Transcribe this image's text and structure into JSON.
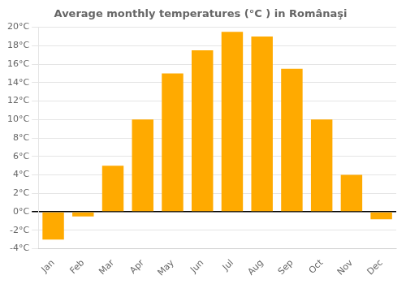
{
  "chart_data": {
    "type": "bar",
    "title": "Average monthly temperatures (°C ) in Românaşi",
    "categories": [
      "Jan",
      "Feb",
      "Mar",
      "Apr",
      "May",
      "Jun",
      "Jul",
      "Aug",
      "Sep",
      "Oct",
      "Nov",
      "Dec"
    ],
    "values": [
      -3.0,
      -0.5,
      5.0,
      10.0,
      15.0,
      17.5,
      19.5,
      19.0,
      15.5,
      10.0,
      4.0,
      -0.8
    ],
    "color": "#FFAA00",
    "ylim": [
      -4,
      20
    ],
    "yticks": [
      {
        "value": -4,
        "label": "-4°C"
      },
      {
        "value": -2,
        "label": "-2°C"
      },
      {
        "value": 0,
        "label": "0°C"
      },
      {
        "value": 2,
        "label": "2°C"
      },
      {
        "value": 4,
        "label": "4°C"
      },
      {
        "value": 6,
        "label": "6°C"
      },
      {
        "value": 8,
        "label": "8°C"
      },
      {
        "value": 10,
        "label": "10°C"
      },
      {
        "value": 12,
        "label": "12°C"
      },
      {
        "value": 14,
        "label": "14°C"
      },
      {
        "value": 16,
        "label": "16°C"
      },
      {
        "value": 18,
        "label": "18°C"
      },
      {
        "value": 20,
        "label": "20°C"
      }
    ],
    "grid": true
  }
}
